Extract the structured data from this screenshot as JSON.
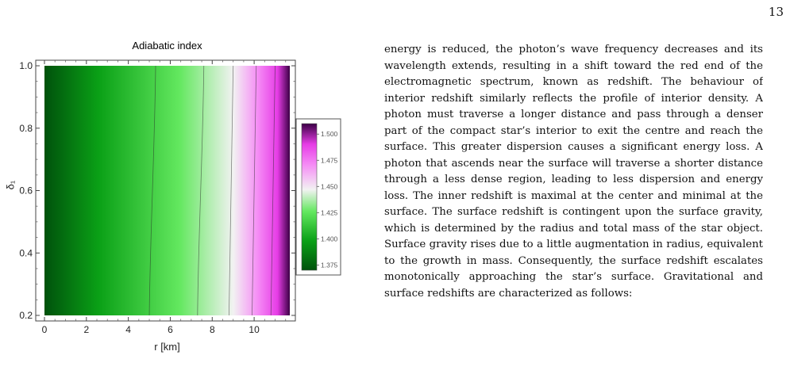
{
  "page": {
    "number": "13"
  },
  "figure": {
    "title": "Adiabatic index",
    "xlabel": "r [km]",
    "ylabel": "δ₁",
    "xticks": [
      "0",
      "2",
      "4",
      "6",
      "8",
      "10"
    ],
    "yticks": [
      "0.2",
      "0.4",
      "0.6",
      "0.8",
      "1.0"
    ],
    "legend_ticks": [
      "1.500",
      "1.475",
      "1.450",
      "1.425",
      "1.400",
      "1.375"
    ]
  },
  "chart_data": {
    "type": "heatmap",
    "title": "Adiabatic index",
    "xlabel": "r [km]",
    "ylabel": "δ₁",
    "xlim": [
      0,
      11.7
    ],
    "ylim": [
      0.2,
      1.0
    ],
    "colorbar": {
      "min": 1.37,
      "max": 1.51,
      "ticks": [
        1.375,
        1.4,
        1.425,
        1.45,
        1.475,
        1.5
      ]
    },
    "colormap": [
      "#00520c",
      "#0aa016",
      "#63e85f",
      "#f2f2f2",
      "#f58cf5",
      "#e63ce6",
      "#3c0046"
    ],
    "contours": [
      {
        "r_at_top": 5.3,
        "r_at_bottom": 5.0
      },
      {
        "r_at_top": 7.6,
        "r_at_bottom": 7.3
      },
      {
        "r_at_top": 9.0,
        "r_at_bottom": 8.8
      },
      {
        "r_at_top": 10.1,
        "r_at_bottom": 9.9
      },
      {
        "r_at_top": 11.0,
        "r_at_bottom": 10.8
      }
    ],
    "grid": false,
    "legend_position": "right"
  },
  "text": {
    "paragraph": "energy is reduced, the photon’s wave frequency decreases and its wavelength extends, resulting in a shift toward the red end of the electromagnetic spectrum, known as redshift. The behaviour of interior redshift similarly reflects the profile of interior density. A photon must traverse a longer distance and pass through a denser part of the compact star’s interior to exit the centre and reach the surface. This greater dispersion causes a significant energy loss. A photon that ascends near the surface will traverse a shorter distance through a less dense region, leading to less dispersion and energy loss. The inner redshift is maximal at the center and minimal at the surface. The surface redshift is contingent upon the surface gravity, which is determined by the radius and total mass of the star object. Surface gravity rises due to a little augmentation in radius, equivalent to the growth in mass. Consequently, the surface redshift escalates monotonically approaching the star’s surface. Gravitational and surface redshifts are characterized as follows:"
  }
}
